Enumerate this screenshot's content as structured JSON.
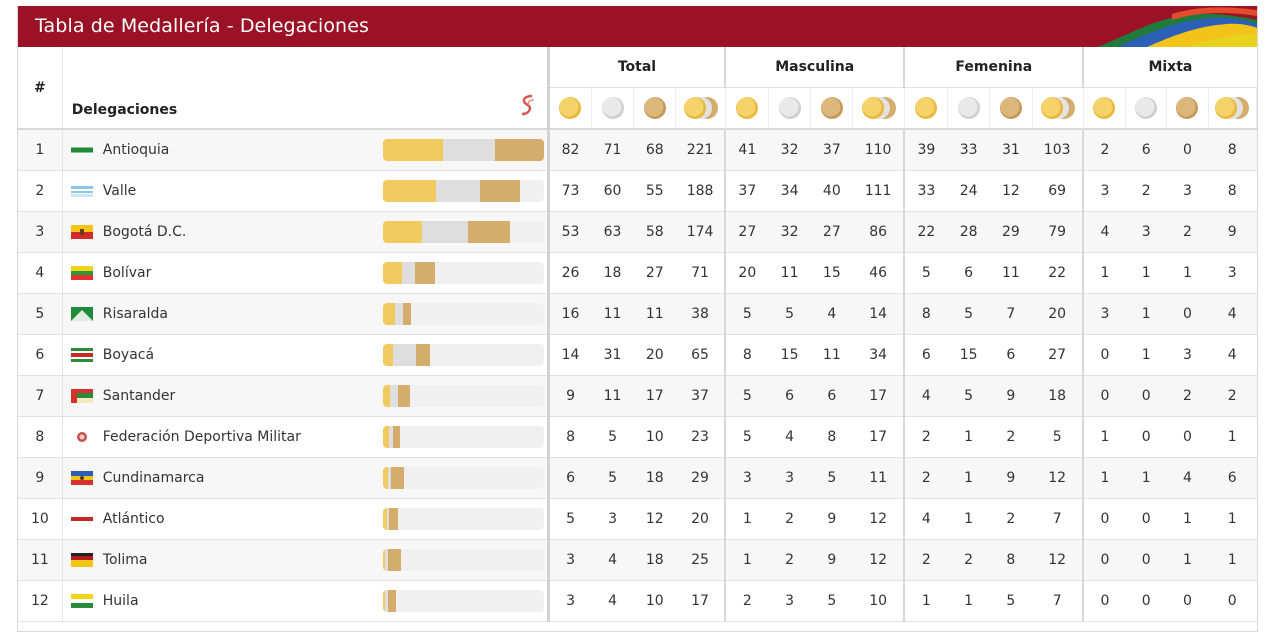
{
  "banner": {
    "title": "Tabla de Medallería - Delegaciones"
  },
  "header": {
    "hash": "#",
    "delegations": "Delegaciones",
    "groups": [
      "Total",
      "Masculina",
      "Femenina",
      "Mixta"
    ]
  },
  "colors": {
    "banner": "#9b1226",
    "gold": "#f2cb60",
    "silver": "#dedede",
    "bronze": "#d4ad6c"
  },
  "rows": [
    {
      "rank": "1",
      "name": "Antioquia",
      "flag": "antioquia",
      "bar": [
        82,
        71,
        68
      ],
      "v": [
        "82",
        "71",
        "68",
        "221",
        "41",
        "32",
        "37",
        "110",
        "39",
        "33",
        "31",
        "103",
        "2",
        "6",
        "0",
        "8"
      ]
    },
    {
      "rank": "2",
      "name": "Valle",
      "flag": "valle",
      "bar": [
        73,
        60,
        55
      ],
      "v": [
        "73",
        "60",
        "55",
        "188",
        "37",
        "34",
        "40",
        "111",
        "33",
        "24",
        "12",
        "69",
        "3",
        "2",
        "3",
        "8"
      ]
    },
    {
      "rank": "3",
      "name": "Bogotá D.C.",
      "flag": "bogota",
      "bar": [
        53,
        63,
        58
      ],
      "v": [
        "53",
        "63",
        "58",
        "174",
        "27",
        "32",
        "27",
        "86",
        "22",
        "28",
        "29",
        "79",
        "4",
        "3",
        "2",
        "9"
      ]
    },
    {
      "rank": "4",
      "name": "Bolívar",
      "flag": "bolivar",
      "bar": [
        26,
        18,
        27
      ],
      "v": [
        "26",
        "18",
        "27",
        "71",
        "20",
        "11",
        "15",
        "46",
        "5",
        "6",
        "11",
        "22",
        "1",
        "1",
        "1",
        "3"
      ]
    },
    {
      "rank": "5",
      "name": "Risaralda",
      "flag": "risaralda",
      "bar": [
        16,
        11,
        11
      ],
      "v": [
        "16",
        "11",
        "11",
        "38",
        "5",
        "5",
        "4",
        "14",
        "8",
        "5",
        "7",
        "20",
        "3",
        "1",
        "0",
        "4"
      ]
    },
    {
      "rank": "6",
      "name": "Boyacá",
      "flag": "boyaca",
      "bar": [
        14,
        31,
        20
      ],
      "v": [
        "14",
        "31",
        "20",
        "65",
        "8",
        "15",
        "11",
        "34",
        "6",
        "15",
        "6",
        "27",
        "0",
        "1",
        "3",
        "4"
      ]
    },
    {
      "rank": "7",
      "name": "Santander",
      "flag": "santander",
      "bar": [
        9,
        11,
        17
      ],
      "v": [
        "9",
        "11",
        "17",
        "37",
        "5",
        "6",
        "6",
        "17",
        "4",
        "5",
        "9",
        "18",
        "0",
        "0",
        "2",
        "2"
      ]
    },
    {
      "rank": "8",
      "name": "Federación Deportiva Militar",
      "flag": "militar",
      "bar": [
        8,
        5,
        10
      ],
      "v": [
        "8",
        "5",
        "10",
        "23",
        "5",
        "4",
        "8",
        "17",
        "2",
        "1",
        "2",
        "5",
        "1",
        "0",
        "0",
        "1"
      ]
    },
    {
      "rank": "9",
      "name": "Cundinamarca",
      "flag": "cundinamarca",
      "bar": [
        6,
        5,
        18
      ],
      "v": [
        "6",
        "5",
        "18",
        "29",
        "3",
        "3",
        "5",
        "11",
        "2",
        "1",
        "9",
        "12",
        "1",
        "1",
        "4",
        "6"
      ]
    },
    {
      "rank": "10",
      "name": "Atlántico",
      "flag": "atlantico",
      "bar": [
        5,
        3,
        12
      ],
      "v": [
        "5",
        "3",
        "12",
        "20",
        "1",
        "2",
        "9",
        "12",
        "4",
        "1",
        "2",
        "7",
        "0",
        "0",
        "1",
        "1"
      ]
    },
    {
      "rank": "11",
      "name": "Tolima",
      "flag": "tolima",
      "bar": [
        3,
        4,
        18
      ],
      "v": [
        "3",
        "4",
        "18",
        "25",
        "1",
        "2",
        "9",
        "12",
        "2",
        "2",
        "8",
        "12",
        "0",
        "0",
        "1",
        "1"
      ]
    },
    {
      "rank": "12",
      "name": "Huila",
      "flag": "huila",
      "bar": [
        3,
        4,
        10
      ],
      "v": [
        "3",
        "4",
        "10",
        "17",
        "2",
        "3",
        "5",
        "10",
        "1",
        "1",
        "5",
        "7",
        "0",
        "0",
        "0",
        "0"
      ]
    }
  ]
}
